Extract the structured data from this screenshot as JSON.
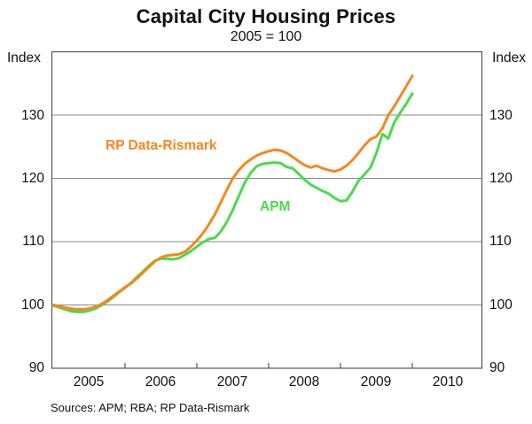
{
  "header": {
    "title": "Capital City Housing Prices",
    "subtitle": "2005 = 100"
  },
  "axes": {
    "left_unit": "Index",
    "right_unit": "Index",
    "y_ticks": [
      90,
      100,
      110,
      120,
      130
    ],
    "x_ticks": [
      2005,
      2006,
      2007,
      2008,
      2009,
      2010
    ]
  },
  "footer": {
    "sources": "Sources: APM; RBA; RP Data-Rismark"
  },
  "colors": {
    "rp_data_rismark": "#f6871f",
    "apm": "#4cd94c",
    "gridline": "#8a8a8a",
    "frame": "#555555"
  },
  "chart_data": {
    "type": "line",
    "title": "Capital City Housing Prices",
    "subtitle": "2005 = 100",
    "ylabel": "Index",
    "ylim": [
      90,
      140
    ],
    "y_gridlines": [
      100,
      110,
      120,
      130
    ],
    "x_start": "2005-01",
    "x_end": "2010-01",
    "x_frequency": "monthly",
    "x_axis_extends_to": 2011,
    "legend_position": "inline-labels",
    "grid": true,
    "series": [
      {
        "name": "APM",
        "color": "#4cd94c",
        "values": [
          99.9,
          99.6,
          99.3,
          99.0,
          98.9,
          98.9,
          99.1,
          99.4,
          99.9,
          100.5,
          101.2,
          102.0,
          102.7,
          103.5,
          104.4,
          105.3,
          106.2,
          107.0,
          107.3,
          107.3,
          107.2,
          107.4,
          107.9,
          108.5,
          109.2,
          109.9,
          110.4,
          110.6,
          111.6,
          113.1,
          115.0,
          117.2,
          119.3,
          120.9,
          121.9,
          122.3,
          122.4,
          122.5,
          122.4,
          121.8,
          121.6,
          120.7,
          119.8,
          119.0,
          118.5,
          118.0,
          117.6,
          116.9,
          116.4,
          116.5,
          117.9,
          119.6,
          120.6,
          121.7,
          124.0,
          127.0,
          126.3,
          128.9,
          130.4,
          131.8,
          133.4
        ]
      },
      {
        "name": "RP Data-Rismark",
        "color": "#f6871f",
        "values": [
          100.0,
          99.8,
          99.6,
          99.4,
          99.3,
          99.3,
          99.4,
          99.7,
          100.1,
          100.7,
          101.4,
          102.1,
          102.8,
          103.4,
          104.2,
          105.1,
          106.0,
          106.9,
          107.5,
          107.8,
          107.9,
          108.0,
          108.4,
          109.2,
          110.2,
          111.3,
          112.7,
          114.3,
          116.2,
          118.2,
          120.0,
          121.3,
          122.3,
          123.0,
          123.6,
          124.0,
          124.3,
          124.5,
          124.4,
          124.0,
          123.4,
          122.7,
          122.1,
          121.7,
          122.0,
          121.6,
          121.3,
          121.1,
          121.4,
          122.0,
          122.9,
          124.0,
          125.2,
          126.2,
          126.6,
          127.9,
          130.0,
          131.4,
          133.0,
          134.6,
          136.2
        ]
      }
    ]
  }
}
